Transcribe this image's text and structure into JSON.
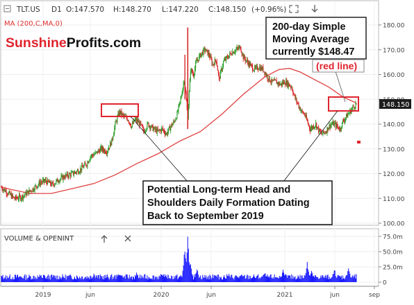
{
  "header": {
    "toggle_icon": "minus-box-icon",
    "ticker": "TLT.US",
    "timeframe": "D1",
    "open": "O:147.570",
    "high": "H:148.270",
    "low": "L:147.220",
    "close": "C:148.150",
    "change": "(+0.96%)",
    "expand_icon": "expand-icon",
    "down_icon": "arrow-down-icon"
  },
  "indicator": {
    "label": "MA (200,C,MA,0)"
  },
  "brand": {
    "first": "Sunshine",
    "second": "Profits.com"
  },
  "annotations": {
    "ma_note": [
      "200-day Simple",
      "Moving Average",
      "currently $148.47"
    ],
    "red_line": "(red line)",
    "hs_note": [
      "Potential Long-term Head and",
      "Shoulders Daily Formation Dating",
      "Back to September 2019"
    ]
  },
  "last_price_label": "148.150",
  "volume_panel": {
    "title": "VOLUME & OPENINT",
    "up_icon": "arrow-up-icon",
    "close_icon": "close-icon",
    "ticks": [
      "75.0m",
      "50.0m",
      "25.0m",
      "0"
    ]
  },
  "colors": {
    "up": "#2ca02c",
    "down": "#d62728",
    "ma": "#e04040",
    "volume": "#1a1aff",
    "box": "#e0242d",
    "price_label_bg": "#1c1c1c"
  },
  "chart_data": {
    "type": "candlestick",
    "price_axis": {
      "ticks": [
        "180.00",
        "170.00",
        "160.00",
        "150.00",
        "140.00",
        "130.00",
        "120.00",
        "110.00",
        "100.00"
      ],
      "ylim": [
        98,
        183
      ]
    },
    "x_axis": {
      "ticks": [
        "2019",
        "jun",
        "2020",
        "jun",
        "2021",
        "jun",
        "sep"
      ]
    },
    "price_path": [
      [
        0,
        114.5
      ],
      [
        10,
        112
      ],
      [
        18,
        110
      ],
      [
        28,
        110.5
      ],
      [
        35,
        112
      ],
      [
        45,
        114
      ],
      [
        55,
        116.5
      ],
      [
        62,
        117
      ],
      [
        72,
        115.5
      ],
      [
        80,
        117.5
      ],
      [
        90,
        119
      ],
      [
        100,
        120
      ],
      [
        110,
        121.5
      ],
      [
        120,
        124
      ],
      [
        125,
        127
      ],
      [
        132,
        128
      ],
      [
        140,
        130
      ],
      [
        148,
        129
      ],
      [
        155,
        133
      ],
      [
        160,
        140
      ],
      [
        166,
        145
      ],
      [
        172,
        143
      ],
      [
        178,
        142
      ],
      [
        183,
        139
      ],
      [
        188,
        142
      ],
      [
        195,
        140
      ],
      [
        200,
        137
      ],
      [
        206,
        140
      ],
      [
        214,
        138
      ],
      [
        220,
        137
      ],
      [
        226,
        138
      ],
      [
        232,
        136
      ],
      [
        238,
        139
      ],
      [
        243,
        141
      ],
      [
        247,
        144
      ],
      [
        252,
        150
      ],
      [
        257,
        158
      ],
      [
        262,
        143
      ],
      [
        266,
        162
      ],
      [
        270,
        160
      ],
      [
        274,
        165
      ],
      [
        280,
        168
      ],
      [
        286,
        170
      ],
      [
        292,
        168
      ],
      [
        297,
        164
      ],
      [
        302,
        166
      ],
      [
        306,
        158
      ],
      [
        312,
        165
      ],
      [
        318,
        167
      ],
      [
        324,
        169
      ],
      [
        330,
        170
      ],
      [
        336,
        171
      ],
      [
        340,
        167
      ],
      [
        346,
        165
      ],
      [
        352,
        163
      ],
      [
        356,
        162
      ],
      [
        362,
        163
      ],
      [
        368,
        162
      ],
      [
        374,
        159
      ],
      [
        380,
        157
      ],
      [
        386,
        157
      ],
      [
        392,
        156
      ],
      [
        398,
        157
      ],
      [
        404,
        156
      ],
      [
        408,
        155
      ],
      [
        412,
        151
      ],
      [
        417,
        148
      ],
      [
        422,
        145
      ],
      [
        426,
        144
      ],
      [
        430,
        141
      ],
      [
        434,
        138
      ],
      [
        438,
        139
      ],
      [
        442,
        140
      ],
      [
        446,
        137.5
      ],
      [
        450,
        136
      ],
      [
        456,
        137
      ],
      [
        460,
        139
      ],
      [
        464,
        140
      ],
      [
        468,
        140
      ],
      [
        472,
        139
      ],
      [
        476,
        138
      ],
      [
        480,
        141
      ],
      [
        485,
        143
      ],
      [
        490,
        145
      ],
      [
        495,
        147
      ],
      [
        499,
        148.2
      ]
    ],
    "ma_200": [
      [
        0,
        114.5
      ],
      [
        40,
        112
      ],
      [
        70,
        112
      ],
      [
        100,
        114
      ],
      [
        130,
        116
      ],
      [
        160,
        119.5
      ],
      [
        190,
        124
      ],
      [
        220,
        128
      ],
      [
        250,
        133
      ],
      [
        280,
        137
      ],
      [
        310,
        144
      ],
      [
        340,
        152
      ],
      [
        370,
        159
      ],
      [
        390,
        162
      ],
      [
        405,
        162.5
      ],
      [
        420,
        161
      ],
      [
        440,
        158
      ],
      [
        460,
        155
      ],
      [
        480,
        151
      ],
      [
        499,
        148.47
      ]
    ],
    "last_price": 148.15,
    "ma_current": 148.47,
    "volume_ylim": [
      0,
      78
    ],
    "volume_spikes": [
      [
        5,
        9
      ],
      [
        60,
        13
      ],
      [
        130,
        16
      ],
      [
        165,
        17
      ],
      [
        190,
        16
      ],
      [
        230,
        14
      ],
      [
        258,
        64
      ],
      [
        262,
        77
      ],
      [
        265,
        40
      ],
      [
        275,
        28
      ],
      [
        300,
        16
      ],
      [
        320,
        14
      ],
      [
        370,
        19
      ],
      [
        396,
        21
      ],
      [
        430,
        38
      ],
      [
        436,
        20
      ],
      [
        468,
        25
      ],
      [
        488,
        28
      ]
    ]
  }
}
